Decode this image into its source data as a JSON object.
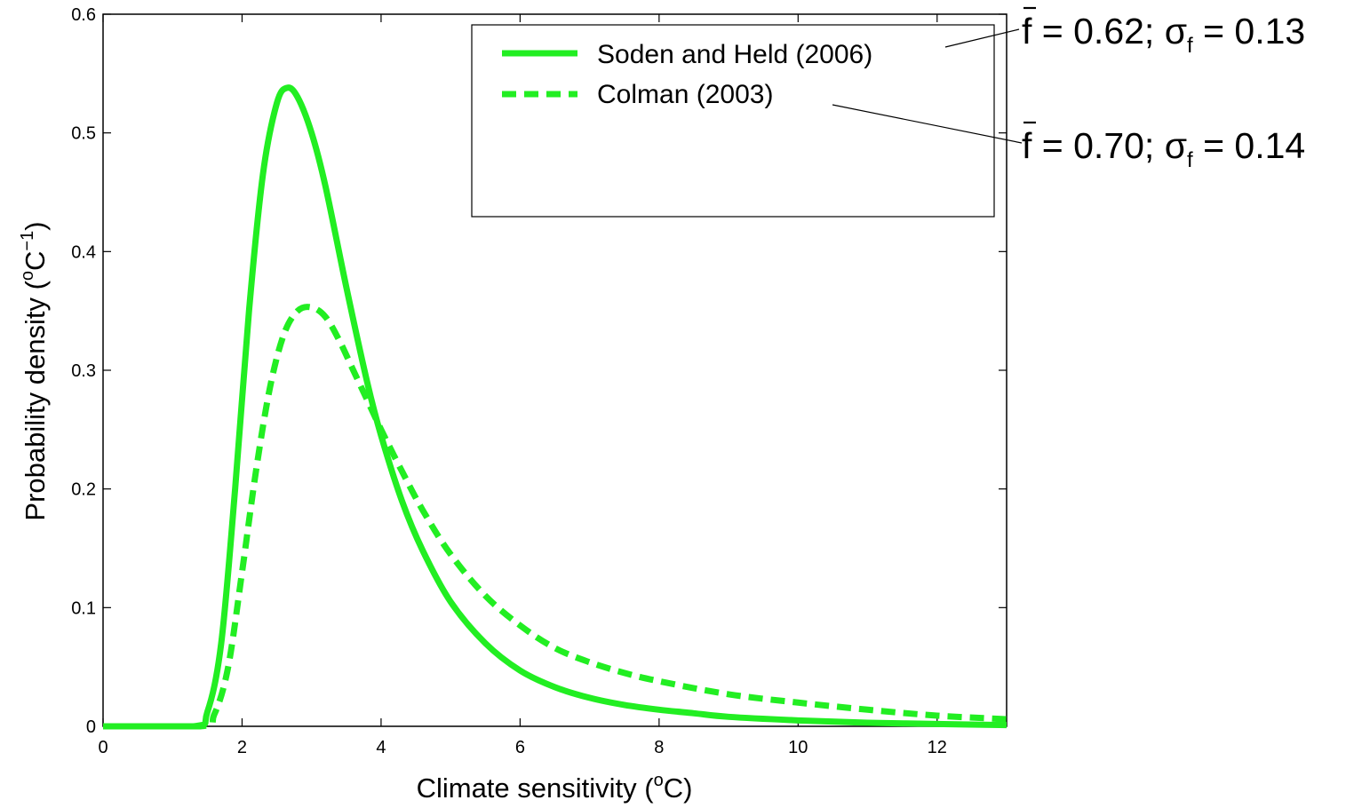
{
  "chart_data": {
    "type": "line",
    "title": "",
    "xlabel": {
      "main": "Climate sensitivity (",
      "sup": "o",
      "tail": "C)"
    },
    "ylabel": {
      "main": "Probability density (",
      "sup1": "o",
      "mid": "C",
      "sup2": "−1",
      "tail": ")"
    },
    "xlim": [
      0,
      13
    ],
    "ylim": [
      0,
      0.6
    ],
    "xticks": [
      0,
      2,
      4,
      6,
      8,
      10,
      12
    ],
    "xtick_labels": [
      "0",
      "2",
      "4",
      "6",
      "8",
      "10",
      "12"
    ],
    "yticks": [
      0,
      0.1,
      0.2,
      0.3,
      0.4,
      0.5,
      0.6
    ],
    "ytick_labels": [
      "0",
      "0.1",
      "0.2",
      "0.3",
      "0.4",
      "0.5",
      "0.6"
    ],
    "grid": false,
    "legend_position": "top-right",
    "series": [
      {
        "name": "Soden and Held (2006)",
        "style": "solid",
        "color": "#22ee22",
        "x": [
          0.0,
          1.3,
          1.5,
          1.7,
          1.9,
          2.1,
          2.3,
          2.5,
          2.65,
          2.8,
          3.0,
          3.2,
          3.5,
          3.8,
          4.0,
          4.3,
          4.6,
          5.0,
          5.5,
          6.0,
          6.5,
          7.0,
          7.5,
          8.0,
          8.5,
          9.0,
          10.0,
          11.0,
          12.0,
          13.0
        ],
        "y": [
          0.0,
          0.0,
          0.012,
          0.07,
          0.2,
          0.35,
          0.465,
          0.525,
          0.538,
          0.53,
          0.5,
          0.455,
          0.37,
          0.29,
          0.245,
          0.19,
          0.148,
          0.105,
          0.07,
          0.047,
          0.033,
          0.024,
          0.018,
          0.014,
          0.011,
          0.008,
          0.005,
          0.003,
          0.002,
          0.001
        ]
      },
      {
        "name": "Colman (2003)",
        "style": "dashed",
        "color": "#22ee22",
        "x": [
          0.0,
          1.4,
          1.6,
          1.8,
          2.0,
          2.2,
          2.4,
          2.6,
          2.8,
          3.0,
          3.2,
          3.4,
          3.6,
          3.8,
          4.0,
          4.3,
          4.6,
          5.0,
          5.5,
          6.0,
          6.5,
          7.0,
          7.5,
          8.0,
          9.0,
          10.0,
          11.0,
          12.0,
          13.0
        ],
        "y": [
          0.0,
          0.0,
          0.01,
          0.05,
          0.13,
          0.215,
          0.285,
          0.33,
          0.35,
          0.353,
          0.345,
          0.325,
          0.3,
          0.275,
          0.25,
          0.215,
          0.182,
          0.145,
          0.11,
          0.085,
          0.066,
          0.054,
          0.045,
          0.038,
          0.027,
          0.02,
          0.014,
          0.009,
          0.006
        ]
      }
    ],
    "annotations": [
      {
        "series": "Soden and Held (2006)",
        "f_bar": "f",
        "eq1": " = 0.62; ",
        "sigma": "σ",
        "sub": "f",
        "eq2": " = 0.13"
      },
      {
        "series": "Colman (2003)",
        "f_bar": "f",
        "eq1": " = 0.70; ",
        "sigma": "σ",
        "sub": "f",
        "eq2": " = 0.14"
      }
    ]
  }
}
